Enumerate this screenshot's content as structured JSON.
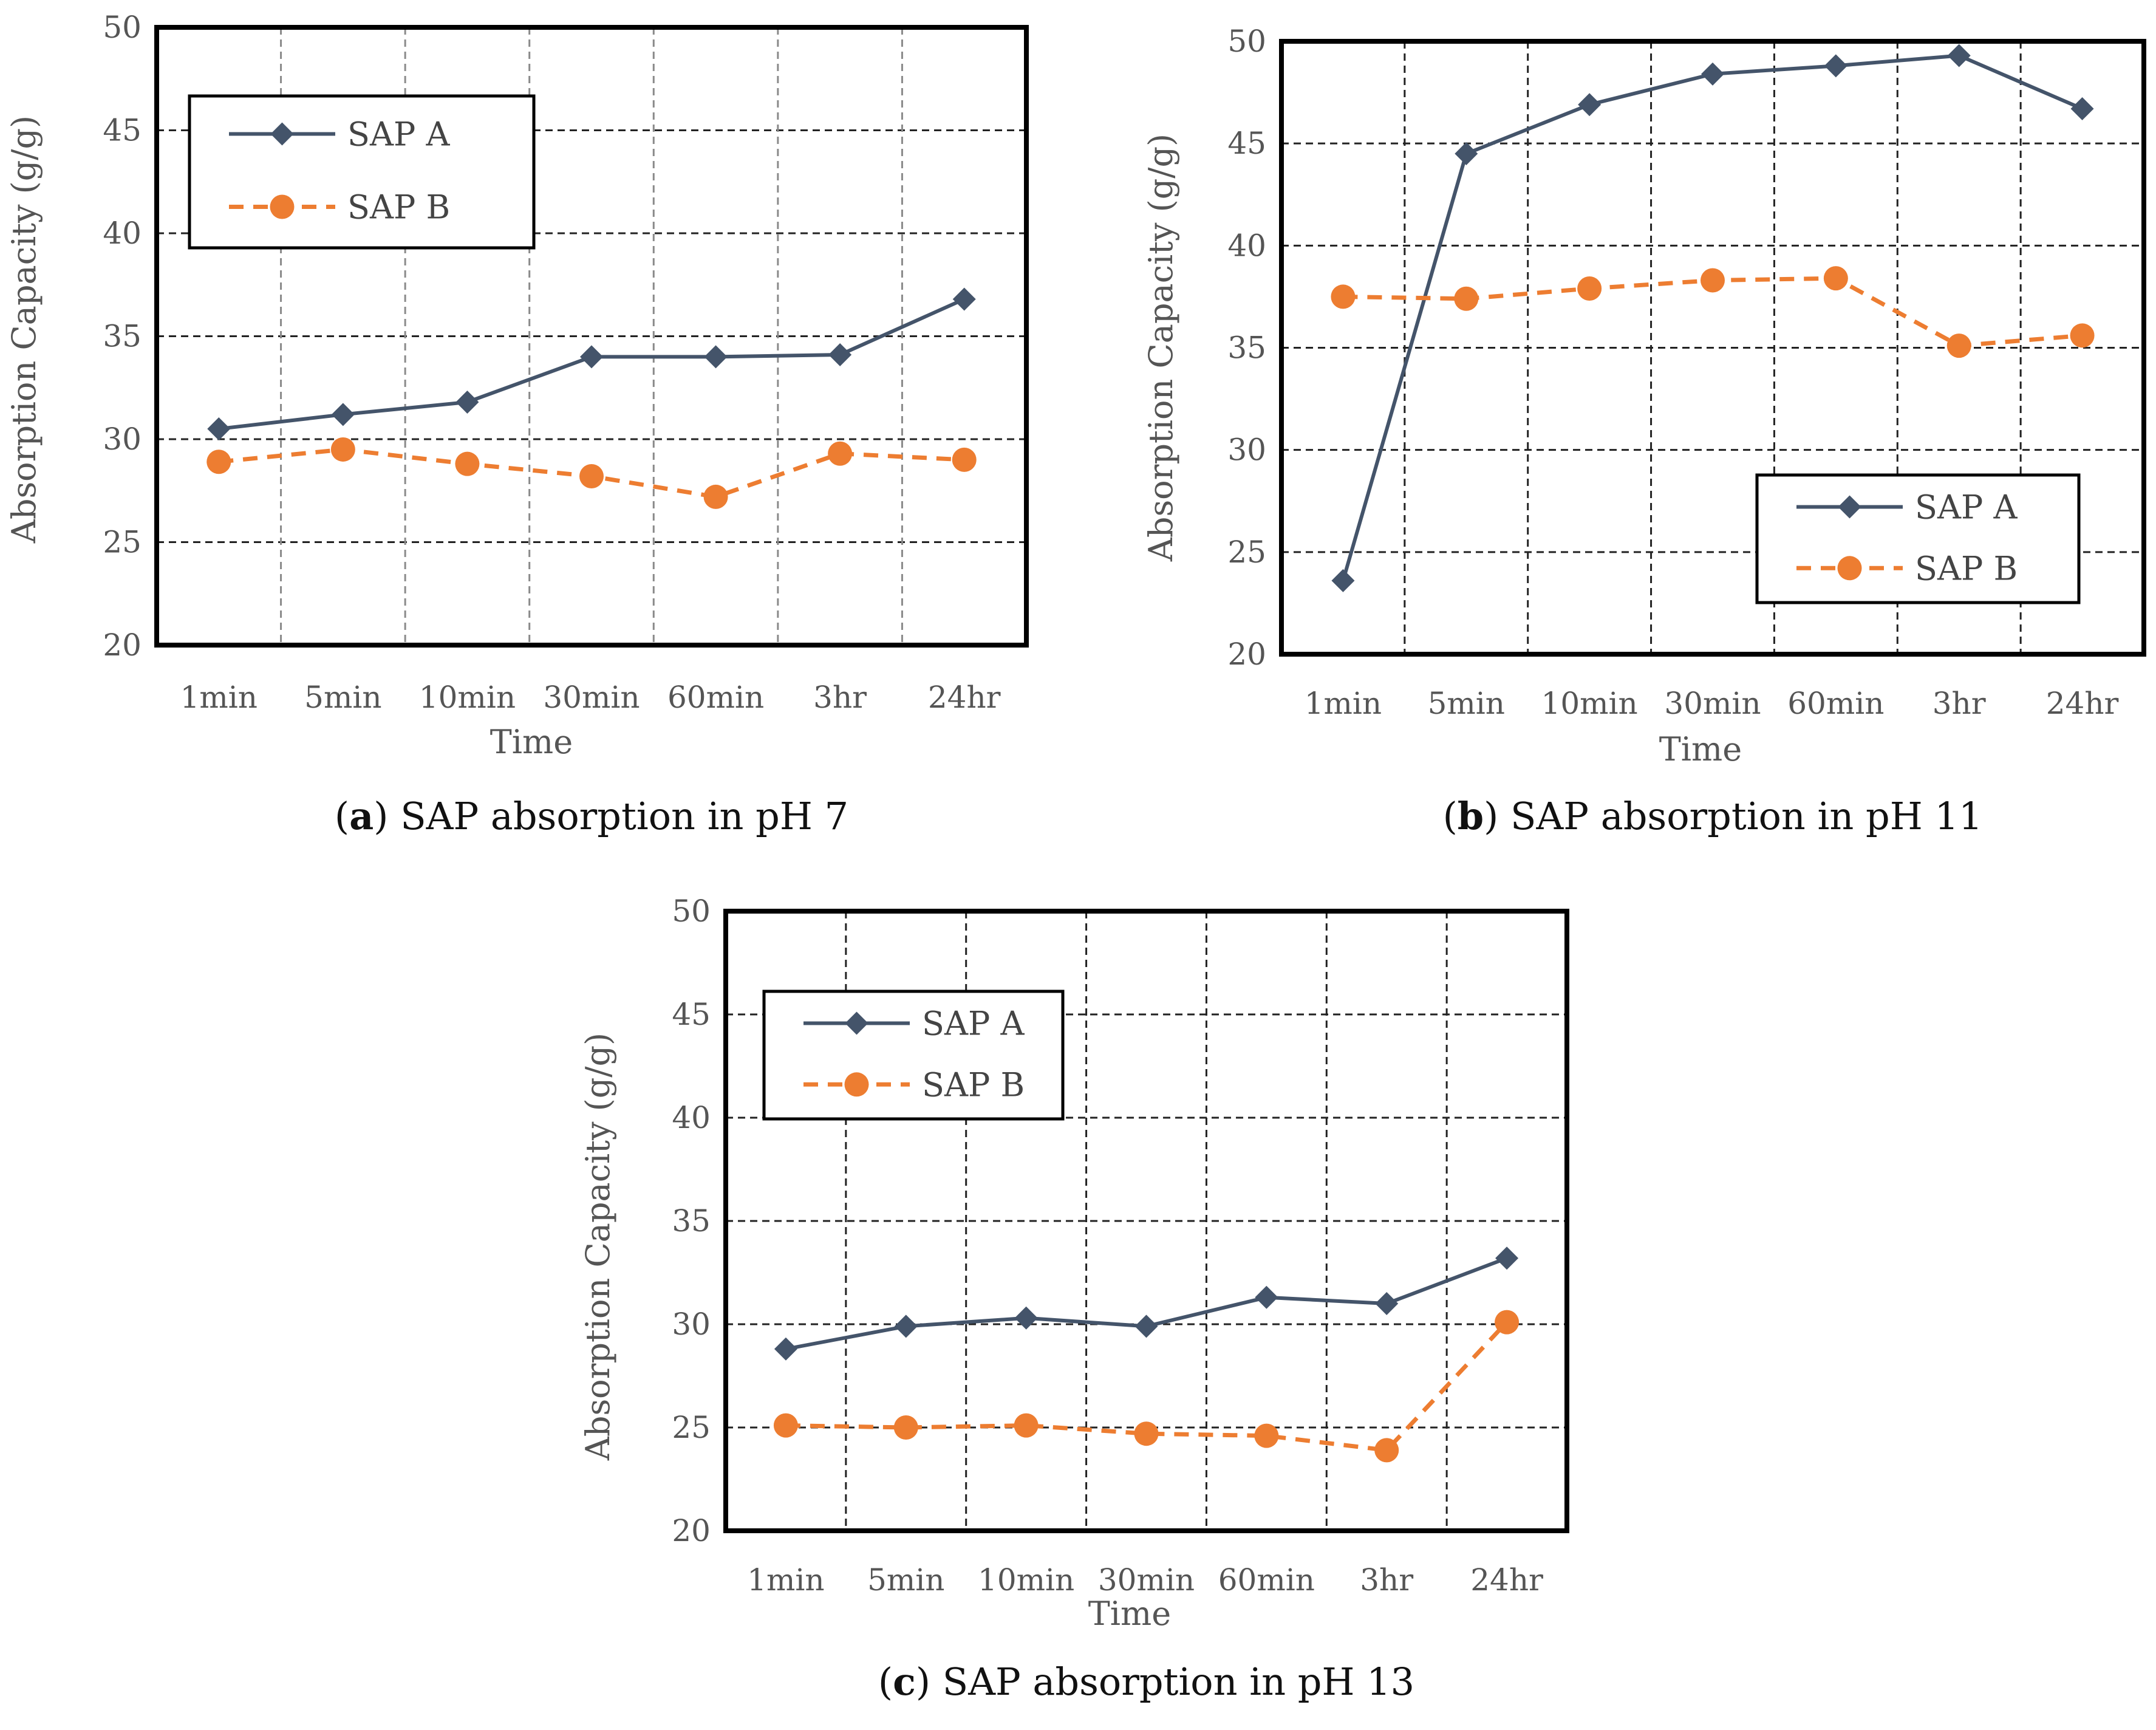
{
  "chart_data": [
    {
      "type": "line",
      "caption_letter": "a",
      "caption_text": ") SAP absorption in pH 7",
      "categories": [
        "1min",
        "5min",
        "10min",
        "30min",
        "60min",
        "3hr",
        "24hr"
      ],
      "series": [
        {
          "name": "SAP A",
          "values": [
            30.5,
            31.2,
            31.8,
            34.0,
            34.0,
            34.1,
            36.8
          ],
          "color": "#44546a",
          "marker": "diamond",
          "dash": false
        },
        {
          "name": "SAP B",
          "values": [
            28.9,
            29.5,
            28.8,
            28.2,
            27.2,
            29.3,
            29.0
          ],
          "color": "#ed7d31",
          "marker": "circle",
          "dash": true
        }
      ],
      "xlabel": "Time",
      "ylabel": "Absorption Capacity (g/g)",
      "ylim": [
        20,
        50
      ],
      "yticks": [
        "20",
        "25",
        "30",
        "35",
        "40",
        "45",
        "50"
      ],
      "legend_position": "top-left",
      "vertical_grid_style": "dashed-gray"
    },
    {
      "type": "line",
      "caption_letter": "b",
      "caption_text": ") SAP absorption in pH 11",
      "categories": [
        "1min",
        "5min",
        "10min",
        "30min",
        "60min",
        "3hr",
        "24hr"
      ],
      "series": [
        {
          "name": "SAP A",
          "values": [
            23.6,
            44.5,
            46.9,
            48.4,
            48.8,
            49.3,
            46.7
          ],
          "color": "#44546a",
          "marker": "diamond",
          "dash": false
        },
        {
          "name": "SAP B",
          "values": [
            37.5,
            37.4,
            37.9,
            38.3,
            38.4,
            35.1,
            35.6
          ],
          "color": "#ed7d31",
          "marker": "circle",
          "dash": true
        }
      ],
      "xlabel": "Time",
      "ylabel": "Absorption Capacity (g/g)",
      "ylim": [
        20,
        50
      ],
      "yticks": [
        "20",
        "25",
        "30",
        "35",
        "40",
        "45",
        "50"
      ],
      "legend_position": "bottom-right",
      "vertical_grid_style": "dashed-black"
    },
    {
      "type": "line",
      "caption_letter": "c",
      "caption_text": ") SAP absorption in pH 13",
      "categories": [
        "1min",
        "5min",
        "10min",
        "30min",
        "60min",
        "3hr",
        "24hr"
      ],
      "series": [
        {
          "name": "SAP A",
          "values": [
            28.8,
            29.9,
            30.3,
            29.9,
            31.3,
            31.0,
            33.2
          ],
          "color": "#44546a",
          "marker": "diamond",
          "dash": false
        },
        {
          "name": "SAP B",
          "values": [
            25.1,
            25.0,
            25.1,
            24.7,
            24.6,
            23.9,
            30.1
          ],
          "color": "#ed7d31",
          "marker": "circle",
          "dash": true
        }
      ],
      "xlabel": "Time",
      "ylabel": "Absorption Capacity (g/g)",
      "ylim": [
        20,
        50
      ],
      "yticks": [
        "20",
        "25",
        "30",
        "35",
        "40",
        "45",
        "50"
      ],
      "legend_position": "top-left",
      "vertical_grid_style": "dashed-black"
    }
  ]
}
